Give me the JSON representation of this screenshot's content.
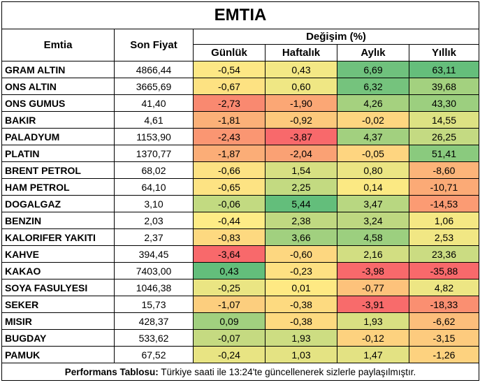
{
  "title": "EMTIA",
  "headers": {
    "name": "Emtia",
    "price": "Son Fiyat",
    "change_group": "Değişim (%)",
    "daily": "Günlük",
    "weekly": "Haftalık",
    "monthly": "Aylık",
    "yearly": "Yıllık"
  },
  "rows": [
    {
      "name": "GRAM ALTIN",
      "price": "4866,44",
      "daily": "-0,54",
      "weekly": "0,43",
      "monthly": "6,69",
      "yearly": "63,11",
      "colors": {
        "daily": "#fde885",
        "weekly": "#f3e885",
        "monthly": "#6fc17d",
        "yearly": "#65be7b"
      }
    },
    {
      "name": "ONS ALTIN",
      "price": "3665,69",
      "daily": "-0,67",
      "weekly": "0,60",
      "monthly": "6,32",
      "yearly": "39,68",
      "colors": {
        "daily": "#fde282",
        "weekly": "#efe784",
        "monthly": "#75c37d",
        "yearly": "#a3d17f"
      }
    },
    {
      "name": "ONS GUMUS",
      "price": "41,40",
      "daily": "-2,73",
      "weekly": "-1,90",
      "monthly": "4,26",
      "yearly": "43,30",
      "colors": {
        "daily": "#f98970",
        "weekly": "#fba775",
        "monthly": "#a5d17f",
        "yearly": "#9ccf7f"
      }
    },
    {
      "name": "BAKIR",
      "price": "4,61",
      "daily": "-1,81",
      "weekly": "-0,92",
      "monthly": "-0,02",
      "yearly": "14,55",
      "colors": {
        "daily": "#fbb078",
        "weekly": "#fdc97c",
        "monthly": "#fed680",
        "yearly": "#dde283"
      }
    },
    {
      "name": "PALADYUM",
      "price": "1153,90",
      "daily": "-2,43",
      "weekly": "-3,87",
      "monthly": "4,37",
      "yearly": "26,25",
      "colors": {
        "daily": "#fa9672",
        "weekly": "#f8696b",
        "monthly": "#a2d07f",
        "yearly": "#c4da82"
      }
    },
    {
      "name": "PLATIN",
      "price": "1370,77",
      "daily": "-1,87",
      "weekly": "-2,04",
      "monthly": "-0,05",
      "yearly": "51,41",
      "colors": {
        "daily": "#fbad77",
        "weekly": "#faa174",
        "monthly": "#fed580",
        "yearly": "#8aca7e"
      }
    },
    {
      "name": "BRENT PETROL",
      "price": "68,02",
      "daily": "-0,66",
      "weekly": "1,54",
      "monthly": "0,80",
      "yearly": "-8,60",
      "colors": {
        "daily": "#fde283",
        "weekly": "#d7e082",
        "monthly": "#ebe583",
        "yearly": "#fcb479"
      }
    },
    {
      "name": "HAM PETROL",
      "price": "64,10",
      "daily": "-0,65",
      "weekly": "2,25",
      "monthly": "0,14",
      "yearly": "-10,71",
      "colors": {
        "daily": "#fde383",
        "weekly": "#c3da81",
        "monthly": "#fbe983",
        "yearly": "#fbaa76"
      }
    },
    {
      "name": "DOGALGAZ",
      "price": "3,10",
      "daily": "-0,06",
      "weekly": "5,44",
      "monthly": "3,47",
      "yearly": "-14,53",
      "colors": {
        "daily": "#c2da81",
        "weekly": "#63be7b",
        "monthly": "#b8d781",
        "yearly": "#fb9b73"
      }
    },
    {
      "name": "BENZIN",
      "price": "2,03",
      "daily": "-0,44",
      "weekly": "2,38",
      "monthly": "3,24",
      "yearly": "1,06",
      "colors": {
        "daily": "#feec86",
        "weekly": "#c0d981",
        "monthly": "#bed881",
        "yearly": "#f5e884"
      }
    },
    {
      "name": "KALORIFER YAKITI",
      "price": "2,37",
      "daily": "-0,83",
      "weekly": "3,66",
      "monthly": "4,58",
      "yearly": "2,53",
      "colors": {
        "daily": "#fdd980",
        "weekly": "#a1d07f",
        "monthly": "#9ccf7f",
        "yearly": "#f1e784"
      }
    },
    {
      "name": "KAHVE",
      "price": "394,45",
      "daily": "-3,64",
      "weekly": "-0,60",
      "monthly": "2,16",
      "yearly": "23,36",
      "colors": {
        "daily": "#f8696b",
        "weekly": "#fdd780",
        "monthly": "#d2de82",
        "yearly": "#cbdc82"
      }
    },
    {
      "name": "KAKAO",
      "price": "7403,00",
      "daily": "0,43",
      "weekly": "-0,23",
      "monthly": "-3,98",
      "yearly": "-35,88",
      "colors": {
        "daily": "#63be7b",
        "weekly": "#fee082",
        "monthly": "#f8696b",
        "yearly": "#f8696b"
      }
    },
    {
      "name": "SOYA FASULYESI",
      "price": "1046,38",
      "daily": "-0,25",
      "weekly": "0,01",
      "monthly": "-0,77",
      "yearly": "4,82",
      "colors": {
        "daily": "#eae583",
        "weekly": "#fee983",
        "monthly": "#fdc27b",
        "yearly": "#ede684"
      }
    },
    {
      "name": "SEKER",
      "price": "15,73",
      "daily": "-1,07",
      "weekly": "-0,38",
      "monthly": "-3,91",
      "yearly": "-18,33",
      "colors": {
        "daily": "#fcce7e",
        "weekly": "#fdda80",
        "monthly": "#f86b6b",
        "yearly": "#fa8f71"
      }
    },
    {
      "name": "MISIR",
      "price": "428,37",
      "daily": "0,09",
      "weekly": "-0,38",
      "monthly": "1,93",
      "yearly": "-6,62",
      "colors": {
        "daily": "#a1d07f",
        "weekly": "#fdda80",
        "monthly": "#d9e082",
        "yearly": "#fcbe7b"
      }
    },
    {
      "name": "BUGDAY",
      "price": "533,62",
      "daily": "-0,07",
      "weekly": "1,93",
      "monthly": "-0,12",
      "yearly": "-3,15",
      "colors": {
        "daily": "#c5da81",
        "weekly": "#cddd82",
        "monthly": "#fdd27f",
        "yearly": "#fdcb7e"
      }
    },
    {
      "name": "PAMUK",
      "price": "67,52",
      "daily": "-0,24",
      "weekly": "1,03",
      "monthly": "1,47",
      "yearly": "-1,26",
      "colors": {
        "daily": "#e8e483",
        "weekly": "#e4e383",
        "monthly": "#e3e283",
        "yearly": "#fdd27f"
      }
    }
  ],
  "footer": {
    "label": "Performans Tablosu:",
    "text": " Türkiye saati ile 13:24'te güncellenerek sizlerle paylaşılmıştır."
  }
}
